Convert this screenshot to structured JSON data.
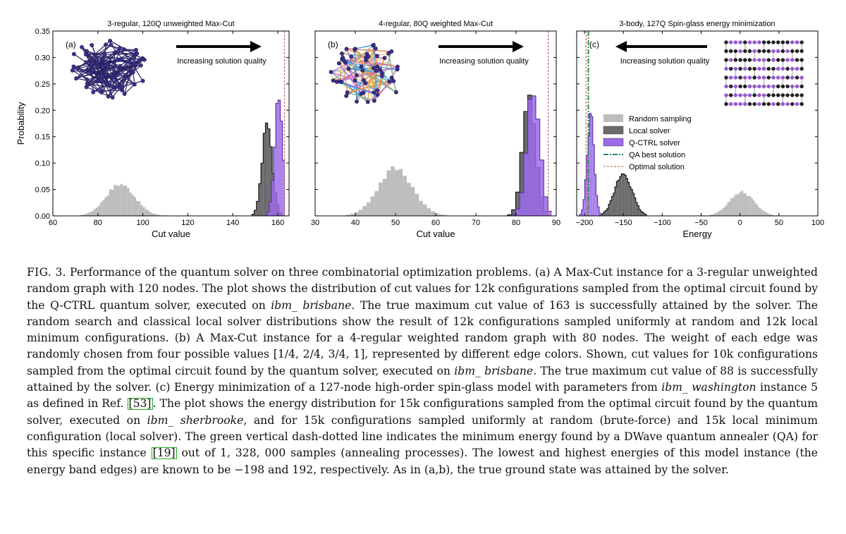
{
  "chart_data": [
    {
      "type": "bar",
      "panel": "(a)",
      "title": "3-regular, 120Q unweighted Max-Cut",
      "xlabel": "Cut value",
      "ylabel": "Probability",
      "xlim": [
        60,
        165
      ],
      "ylim": [
        0,
        0.35
      ],
      "xticks": [
        60,
        80,
        100,
        120,
        140,
        160
      ],
      "yticks": [
        0.0,
        0.05,
        0.1,
        0.15,
        0.2,
        0.25,
        0.3,
        0.35
      ],
      "annotation": "Increasing solution quality",
      "arrow_direction": "right",
      "optimal_solution": 163,
      "series": [
        {
          "name": "Random sampling",
          "color": "#bdbdbd",
          "mean": 90,
          "sd": 6.5,
          "peak": 0.06
        },
        {
          "name": "Local solver",
          "color": "#6b6b6b",
          "mean": 155.3,
          "sd": 2.2,
          "peak": 0.185
        },
        {
          "name": "Q-CTRL solver",
          "color": "#9b6bea",
          "mean": 160.3,
          "sd": 1.8,
          "peak": 0.22
        }
      ]
    },
    {
      "type": "bar",
      "panel": "(b)",
      "title": "4-regular, 80Q weighted Max-Cut",
      "xlabel": "Cut value",
      "ylabel": "",
      "xlim": [
        30,
        90
      ],
      "ylim": [
        0,
        0.35
      ],
      "xticks": [
        30,
        40,
        50,
        60,
        70,
        80,
        90
      ],
      "annotation": "Increasing solution quality",
      "arrow_direction": "right",
      "optimal_solution": 88,
      "series": [
        {
          "name": "Random sampling",
          "color": "#bdbdbd",
          "mean": 50,
          "sd": 4.3,
          "peak": 0.09
        },
        {
          "name": "Local solver",
          "color": "#6b6b6b",
          "mean": 83.3,
          "sd": 1.6,
          "peak": 0.23
        },
        {
          "name": "Q-CTRL solver",
          "color": "#9b6bea",
          "mean": 84.3,
          "sd": 1.6,
          "peak": 0.24
        }
      ]
    },
    {
      "type": "bar",
      "panel": "(c)",
      "title": "3-body, 127Q Spin-glass energy minimization",
      "xlabel": "Energy",
      "ylabel": "",
      "xlim": [
        -210,
        100
      ],
      "ylim": [
        0,
        0.35
      ],
      "xticks": [
        -200,
        -150,
        -100,
        -50,
        0,
        50,
        100
      ],
      "annotation": "Increasing solution quality",
      "arrow_direction": "left",
      "optimal_solution": -198,
      "qa_best_solution": -195,
      "series": [
        {
          "name": "Random sampling",
          "color": "#bdbdbd",
          "mean": 2,
          "sd": 16,
          "peak": 0.045
        },
        {
          "name": "Local solver",
          "color": "#6b6b6b",
          "mean": -150,
          "sd": 11,
          "peak": 0.08
        },
        {
          "name": "Q-CTRL solver",
          "color": "#9b6bea",
          "mean": -192,
          "sd": 4.5,
          "peak": 0.19
        }
      ],
      "legend": [
        {
          "label": "Random sampling",
          "kind": "patch",
          "color": "#bdbdbd"
        },
        {
          "label": "Local solver",
          "kind": "patch",
          "color": "#6b6b6b"
        },
        {
          "label": "Q-CTRL solver",
          "kind": "patch",
          "color": "#9b6bea"
        },
        {
          "label": "QA best solution",
          "kind": "dashdot",
          "color": "#2e8b57"
        },
        {
          "label": "Optimal solution",
          "kind": "dashed",
          "color": "#c0504d"
        }
      ],
      "legend_position": "center-left"
    }
  ],
  "caption": {
    "label": "FIG. 3.",
    "parts": [
      {
        "t": " Performance of the quantum solver on three combinatorial optimization problems. (a) A Max-Cut instance for a 3-regular unweighted random graph with 120 nodes. The plot shows the distribution of cut values for 12k configurations sampled from the optimal circuit found by the Q-CTRL quantum solver, executed on "
      },
      {
        "i": "ibm_ brisbane."
      },
      {
        "t": " The true maximum cut value of 163 is successfully attained by the solver. The random search and classical local solver distributions show the result of 12k configurations sampled uniformly at random and 12k local minimum configurations. (b) A Max-Cut instance for a 4-regular weighted random graph with 80 nodes. The weight of each edge was randomly chosen from four possible values [1/4, 2/4, 3/4, 1], represented by different edge colors. Shown, cut values for 10k configurations sampled from the optimal circuit found by the quantum solver, executed on "
      },
      {
        "i": "ibm_ brisbane."
      },
      {
        "t": " The true maximum cut value of 88 is successfully attained by the solver. (c) Energy minimization of a 127-node high-order spin-glass model with parameters from "
      },
      {
        "i": "ibm_ washington"
      },
      {
        "t": " instance 5 as defined in Ref. "
      },
      {
        "r": "[53]"
      },
      {
        "t": ". The plot shows the energy distribution for 15k configurations sampled from the optimal circuit found by the quantum solver, executed on "
      },
      {
        "i": "ibm_ sherbrooke"
      },
      {
        "t": ", and for 15k configurations sampled uniformly at random (brute-force) and 15k local minimum configuration (local solver). The green vertical dash-dotted line indicates the minimum energy found by a DWave quantum annealer (QA) for this specific instance "
      },
      {
        "r": "[19]"
      },
      {
        "t": " out of 1, 328, 000 samples (annealing processes). The lowest and highest energies of this model instance (the energy band edges) are known to be −198 and 192, respectively. As in (a,b), the true ground state was attained by the solver."
      }
    ]
  }
}
